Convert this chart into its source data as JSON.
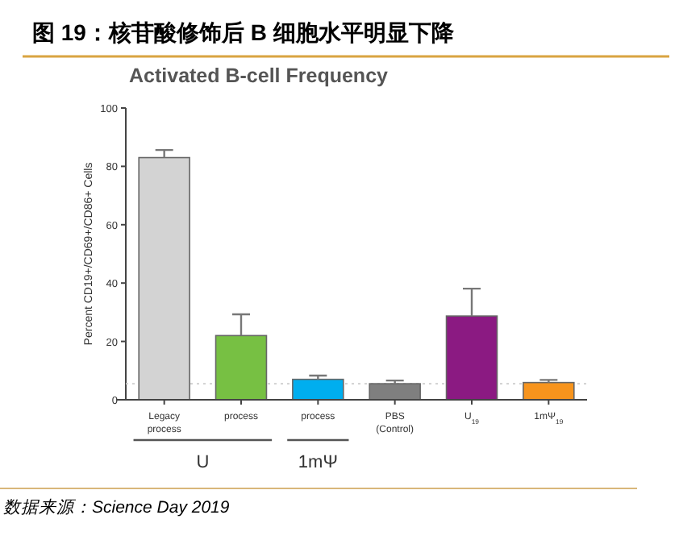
{
  "chart_data": {
    "type": "bar",
    "title": "图 19：核苷酸修饰后 B 细胞水平明显下降",
    "subtitle": "Activated B-cell Frequency",
    "ylabel": "Percent CD19+/CD69+/CD86+ Cells",
    "categories": [
      "Legacy process",
      "process",
      "process",
      "PBS (Control)",
      "U$_{19}$",
      "1mΨ$_{19}$"
    ],
    "values": [
      83,
      22,
      7,
      5.5,
      28.7,
      5.9
    ],
    "errors": [
      [
        83,
        85.6
      ],
      [
        22,
        29.3
      ],
      [
        7,
        8.3
      ],
      [
        5.5,
        6.6
      ],
      [
        28.7,
        38.1
      ],
      [
        5.9,
        6.8
      ]
    ],
    "colors": [
      "#d3d3d3",
      "#77c043",
      "#00aeef",
      "#7f7f7f",
      "#8b1a82",
      "#f7941d"
    ],
    "ylim": [
      0,
      100
    ],
    "yticks": [
      0,
      20,
      40,
      60,
      80,
      100
    ],
    "grid": false,
    "ref_lines": [
      {
        "axis": "y",
        "value": 5.5,
        "label": null,
        "color": "#cccccc",
        "line_style": "dotted"
      }
    ],
    "annotations": [
      "U",
      "1mΨ",
      "数据来源：Science Day 2019"
    ]
  }
}
